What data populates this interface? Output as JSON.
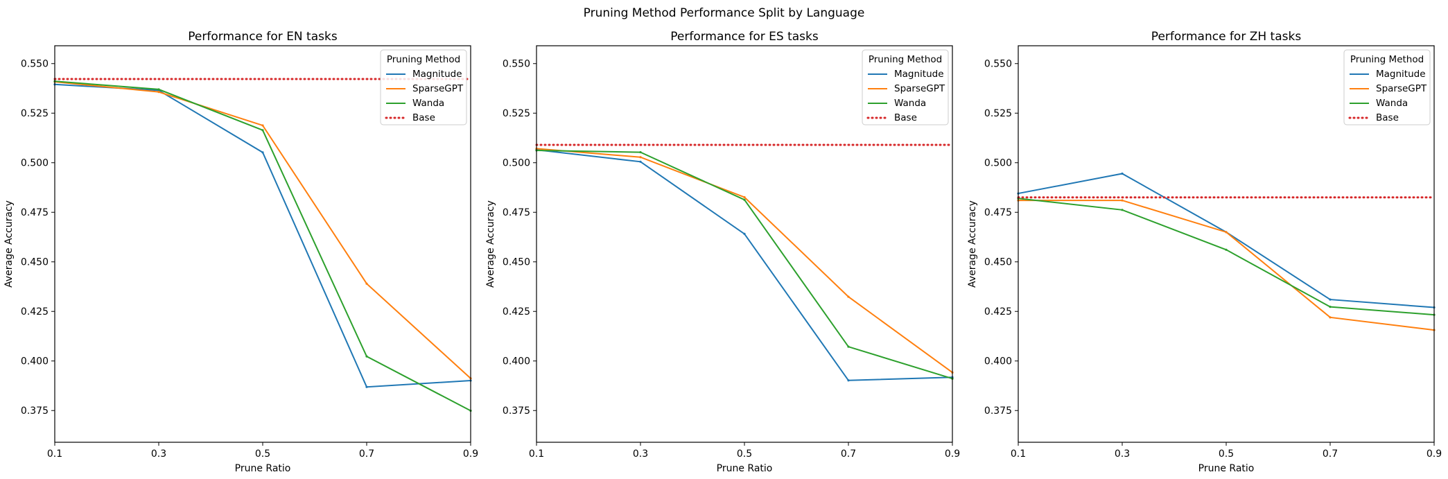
{
  "chart_data": {
    "type": "line",
    "title": "Pruning Method Performance Split by Language",
    "x_ticks": [
      "0.1",
      "0.3",
      "0.5",
      "0.7",
      "0.9"
    ],
    "y_ticks": [
      "0.375",
      "0.400",
      "0.425",
      "0.450",
      "0.475",
      "0.500",
      "0.525",
      "0.550"
    ],
    "xlim": [
      0.1,
      0.9
    ],
    "ylim": [
      0.359,
      0.559
    ],
    "grid": false,
    "legend_placement": "top-right",
    "legend_title": "Pruning Method",
    "series_styles": [
      {
        "name": "Magnitude",
        "color": "#1f77b4",
        "style": "solid"
      },
      {
        "name": "SparseGPT",
        "color": "#ff7f0e",
        "style": "solid"
      },
      {
        "name": "Wanda",
        "color": "#2ca02c",
        "style": "solid"
      },
      {
        "name": "Base",
        "color": "#d62728",
        "style": "dotted"
      }
    ],
    "panels": [
      {
        "title": "Performance for EN tasks",
        "xlabel": "Prune Ratio",
        "ylabel": "Average Accuracy",
        "x": [
          0.1,
          0.3,
          0.5,
          0.7,
          0.9
        ],
        "series": [
          {
            "name": "Magnitude",
            "values": [
              0.5395,
              0.5365,
              0.5052,
              0.3869,
              0.3901
            ]
          },
          {
            "name": "SparseGPT",
            "values": [
              0.5408,
              0.5357,
              0.5188,
              0.439,
              0.3912
            ]
          },
          {
            "name": "Wanda",
            "values": [
              0.5411,
              0.537,
              0.5164,
              0.4023,
              0.3749
            ]
          }
        ],
        "base": 0.5422
      },
      {
        "title": "Performance for ES tasks",
        "xlabel": "Prune Ratio",
        "ylabel": "Average Accuracy",
        "x": [
          0.1,
          0.3,
          0.5,
          0.7,
          0.9
        ],
        "series": [
          {
            "name": "Magnitude",
            "values": [
              0.5065,
              0.5005,
              0.4641,
              0.3902,
              0.3918
            ]
          },
          {
            "name": "SparseGPT",
            "values": [
              0.5071,
              0.5028,
              0.4826,
              0.4324,
              0.3942
            ]
          },
          {
            "name": "Wanda",
            "values": [
              0.5062,
              0.5053,
              0.4813,
              0.4072,
              0.3911
            ]
          }
        ],
        "base": 0.509
      },
      {
        "title": "Performance for ZH tasks",
        "xlabel": "Prune Ratio",
        "ylabel": "Average Accuracy",
        "x": [
          0.1,
          0.3,
          0.5,
          0.7,
          0.9
        ],
        "series": [
          {
            "name": "Magnitude",
            "values": [
              0.4845,
              0.4945,
              0.465,
              0.431,
              0.427
            ]
          },
          {
            "name": "SparseGPT",
            "values": [
              0.481,
              0.481,
              0.465,
              0.422,
              0.4156
            ]
          },
          {
            "name": "Wanda",
            "values": [
              0.482,
              0.4762,
              0.4561,
              0.4273,
              0.4233
            ]
          }
        ],
        "base": 0.4825
      }
    ]
  }
}
